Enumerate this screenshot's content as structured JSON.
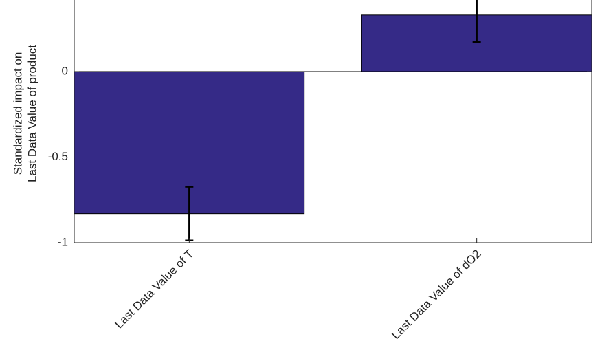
{
  "chart_data": {
    "type": "bar",
    "ylabel": [
      "Standardized impact on",
      "Last Data Value of product"
    ],
    "categories": [
      "Last Data Value of T",
      "Last Data Value of dO2"
    ],
    "values": [
      -0.83,
      0.33
    ],
    "errors": [
      0.157,
      0.157
    ],
    "color": "#352a87",
    "ylim": [
      -1,
      0.5
    ],
    "yticks": [
      -1,
      -0.5,
      0
    ]
  }
}
